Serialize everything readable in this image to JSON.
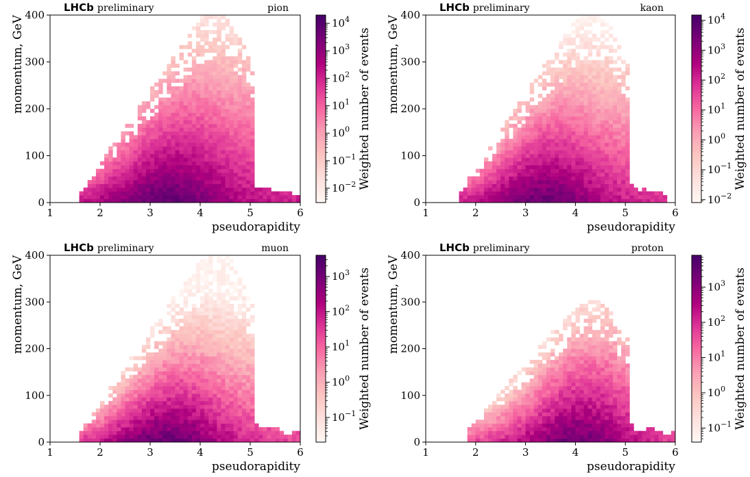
{
  "chart_data": [
    {
      "type": "heatmap",
      "particle": "pion",
      "brand": "LHCb",
      "brand_suffix": "preliminary",
      "xlabel": "pseudorapidity",
      "ylabel": "momentum, GeV",
      "colorbar_label": "Weighted number of events",
      "xlim": [
        1,
        6
      ],
      "ylim": [
        0,
        400
      ],
      "xticks": [
        1,
        2,
        3,
        4,
        5,
        6
      ],
      "yticks": [
        0,
        100,
        200,
        300,
        400
      ],
      "colorbar_scale": "log",
      "colorbar_range": [
        0.003,
        20000
      ],
      "colorbar_ticks": [
        {
          "exp": "4",
          "v": 10000
        },
        {
          "exp": "3",
          "v": 1000
        },
        {
          "exp": "2",
          "v": 100
        },
        {
          "exp": "1",
          "v": 10
        },
        {
          "exp": "0",
          "v": 1
        },
        {
          "exp": "−1",
          "v": 0.1
        },
        {
          "exp": "−2",
          "v": 0.01
        }
      ],
      "distribution": {
        "eta_min": 1.6,
        "eta_max": 6.0,
        "eta_peak": 3.3,
        "p_max_at_eta4": 400,
        "tail_eta_max": 6.0,
        "peak_log_value": 4.2
      }
    },
    {
      "type": "heatmap",
      "particle": "kaon",
      "brand": "LHCb",
      "brand_suffix": "preliminary",
      "xlabel": "pseudorapidity",
      "ylabel": "momentum, GeV",
      "colorbar_label": "Weighted number of events",
      "xlim": [
        1,
        6
      ],
      "ylim": [
        0,
        400
      ],
      "xticks": [
        1,
        2,
        3,
        4,
        5,
        6
      ],
      "yticks": [
        0,
        100,
        200,
        300,
        400
      ],
      "colorbar_scale": "log",
      "colorbar_range": [
        0.008,
        15000
      ],
      "colorbar_ticks": [
        {
          "exp": "4",
          "v": 10000
        },
        {
          "exp": "3",
          "v": 1000
        },
        {
          "exp": "2",
          "v": 100
        },
        {
          "exp": "1",
          "v": 10
        },
        {
          "exp": "0",
          "v": 1
        },
        {
          "exp": "−1",
          "v": 0.1
        },
        {
          "exp": "−2",
          "v": 0.01
        }
      ],
      "distribution": {
        "eta_min": 1.7,
        "eta_max": 5.8,
        "eta_peak": 3.3,
        "p_max_at_eta4": 400,
        "tail_eta_max": 5.8,
        "peak_log_value": 4.0
      }
    },
    {
      "type": "heatmap",
      "particle": "muon",
      "brand": "LHCb",
      "brand_suffix": "preliminary",
      "xlabel": "pseudorapidity",
      "ylabel": "momentum, GeV",
      "colorbar_label": "Weighted number of events",
      "xlim": [
        1,
        6
      ],
      "ylim": [
        0,
        400
      ],
      "xticks": [
        1,
        2,
        3,
        4,
        5,
        6
      ],
      "yticks": [
        0,
        100,
        200,
        300,
        400
      ],
      "colorbar_scale": "log",
      "colorbar_range": [
        0.02,
        4000
      ],
      "colorbar_ticks": [
        {
          "exp": "3",
          "v": 1000
        },
        {
          "exp": "2",
          "v": 100
        },
        {
          "exp": "1",
          "v": 10
        },
        {
          "exp": "0",
          "v": 1
        },
        {
          "exp": "−1",
          "v": 0.1
        }
      ],
      "distribution": {
        "eta_min": 1.6,
        "eta_max": 6.0,
        "eta_peak": 3.3,
        "p_max_at_eta4": 400,
        "tail_eta_max": 6.0,
        "peak_log_value": 3.5
      }
    },
    {
      "type": "heatmap",
      "particle": "proton",
      "brand": "LHCb",
      "brand_suffix": "preliminary",
      "xlabel": "pseudorapidity",
      "ylabel": "momentum, GeV",
      "colorbar_label": "Weighted number of events",
      "xlim": [
        1,
        6
      ],
      "ylim": [
        0,
        400
      ],
      "xticks": [
        1,
        2,
        3,
        4,
        5,
        6
      ],
      "yticks": [
        0,
        100,
        200,
        300,
        400
      ],
      "colorbar_scale": "log",
      "colorbar_range": [
        0.04,
        8000
      ],
      "colorbar_ticks": [
        {
          "exp": "3",
          "v": 1000
        },
        {
          "exp": "2",
          "v": 100
        },
        {
          "exp": "1",
          "v": 10
        },
        {
          "exp": "0",
          "v": 1
        },
        {
          "exp": "−1",
          "v": 0.1
        }
      ],
      "distribution": {
        "eta_min": 1.8,
        "eta_max": 6.0,
        "eta_peak": 4.0,
        "p_max_at_eta4": 300,
        "tail_eta_max": 6.0,
        "peak_log_value": 3.7
      }
    }
  ]
}
